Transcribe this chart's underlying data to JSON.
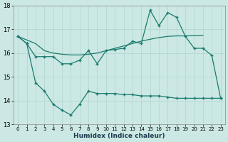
{
  "xlabel": "Humidex (Indice chaleur)",
  "ylim": [
    13,
    18
  ],
  "yticks": [
    13,
    14,
    15,
    16,
    17,
    18
  ],
  "xticks": [
    0,
    1,
    2,
    3,
    4,
    5,
    6,
    7,
    8,
    9,
    10,
    11,
    12,
    13,
    14,
    15,
    16,
    17,
    18,
    19,
    20,
    21,
    22,
    23
  ],
  "line_color": "#1a7a6e",
  "bg_color": "#cce8e4",
  "grid_color": "#b0d4cf",
  "line_A_x": [
    0,
    1,
    2,
    3,
    4,
    5,
    6,
    7,
    8,
    9,
    10,
    11,
    12,
    13,
    14,
    15,
    16,
    17,
    18,
    19,
    20,
    21,
    22,
    23
  ],
  "line_A_y": [
    16.7,
    16.4,
    15.85,
    15.85,
    15.85,
    15.55,
    15.55,
    15.7,
    16.1,
    15.55,
    16.1,
    16.15,
    16.2,
    16.5,
    16.4,
    17.8,
    17.15,
    17.7,
    17.5,
    16.7,
    16.2,
    16.2,
    15.9,
    14.1
  ],
  "line_B_x": [
    0,
    1,
    2,
    3,
    4,
    5,
    6,
    7,
    8,
    9,
    10,
    11,
    12,
    13,
    14,
    15,
    16,
    17,
    18,
    19,
    20,
    21
  ],
  "line_B_y": [
    16.7,
    16.55,
    16.4,
    16.1,
    16.0,
    15.95,
    15.92,
    15.92,
    15.95,
    16.0,
    16.1,
    16.2,
    16.3,
    16.4,
    16.5,
    16.58,
    16.65,
    16.7,
    16.72,
    16.72,
    16.73,
    16.74
  ],
  "line_C_x": [
    0,
    1,
    2,
    3,
    4,
    5,
    6,
    7,
    8,
    9,
    10,
    11,
    12,
    13,
    14,
    15,
    16,
    17,
    18,
    19,
    20,
    21,
    22,
    23
  ],
  "line_C_y": [
    16.7,
    16.4,
    14.75,
    14.4,
    13.85,
    13.6,
    13.4,
    13.85,
    14.4,
    14.3,
    14.3,
    14.3,
    14.25,
    14.25,
    14.2,
    14.2,
    14.2,
    14.15,
    14.1,
    14.1,
    14.1,
    14.1,
    14.1,
    14.1
  ]
}
